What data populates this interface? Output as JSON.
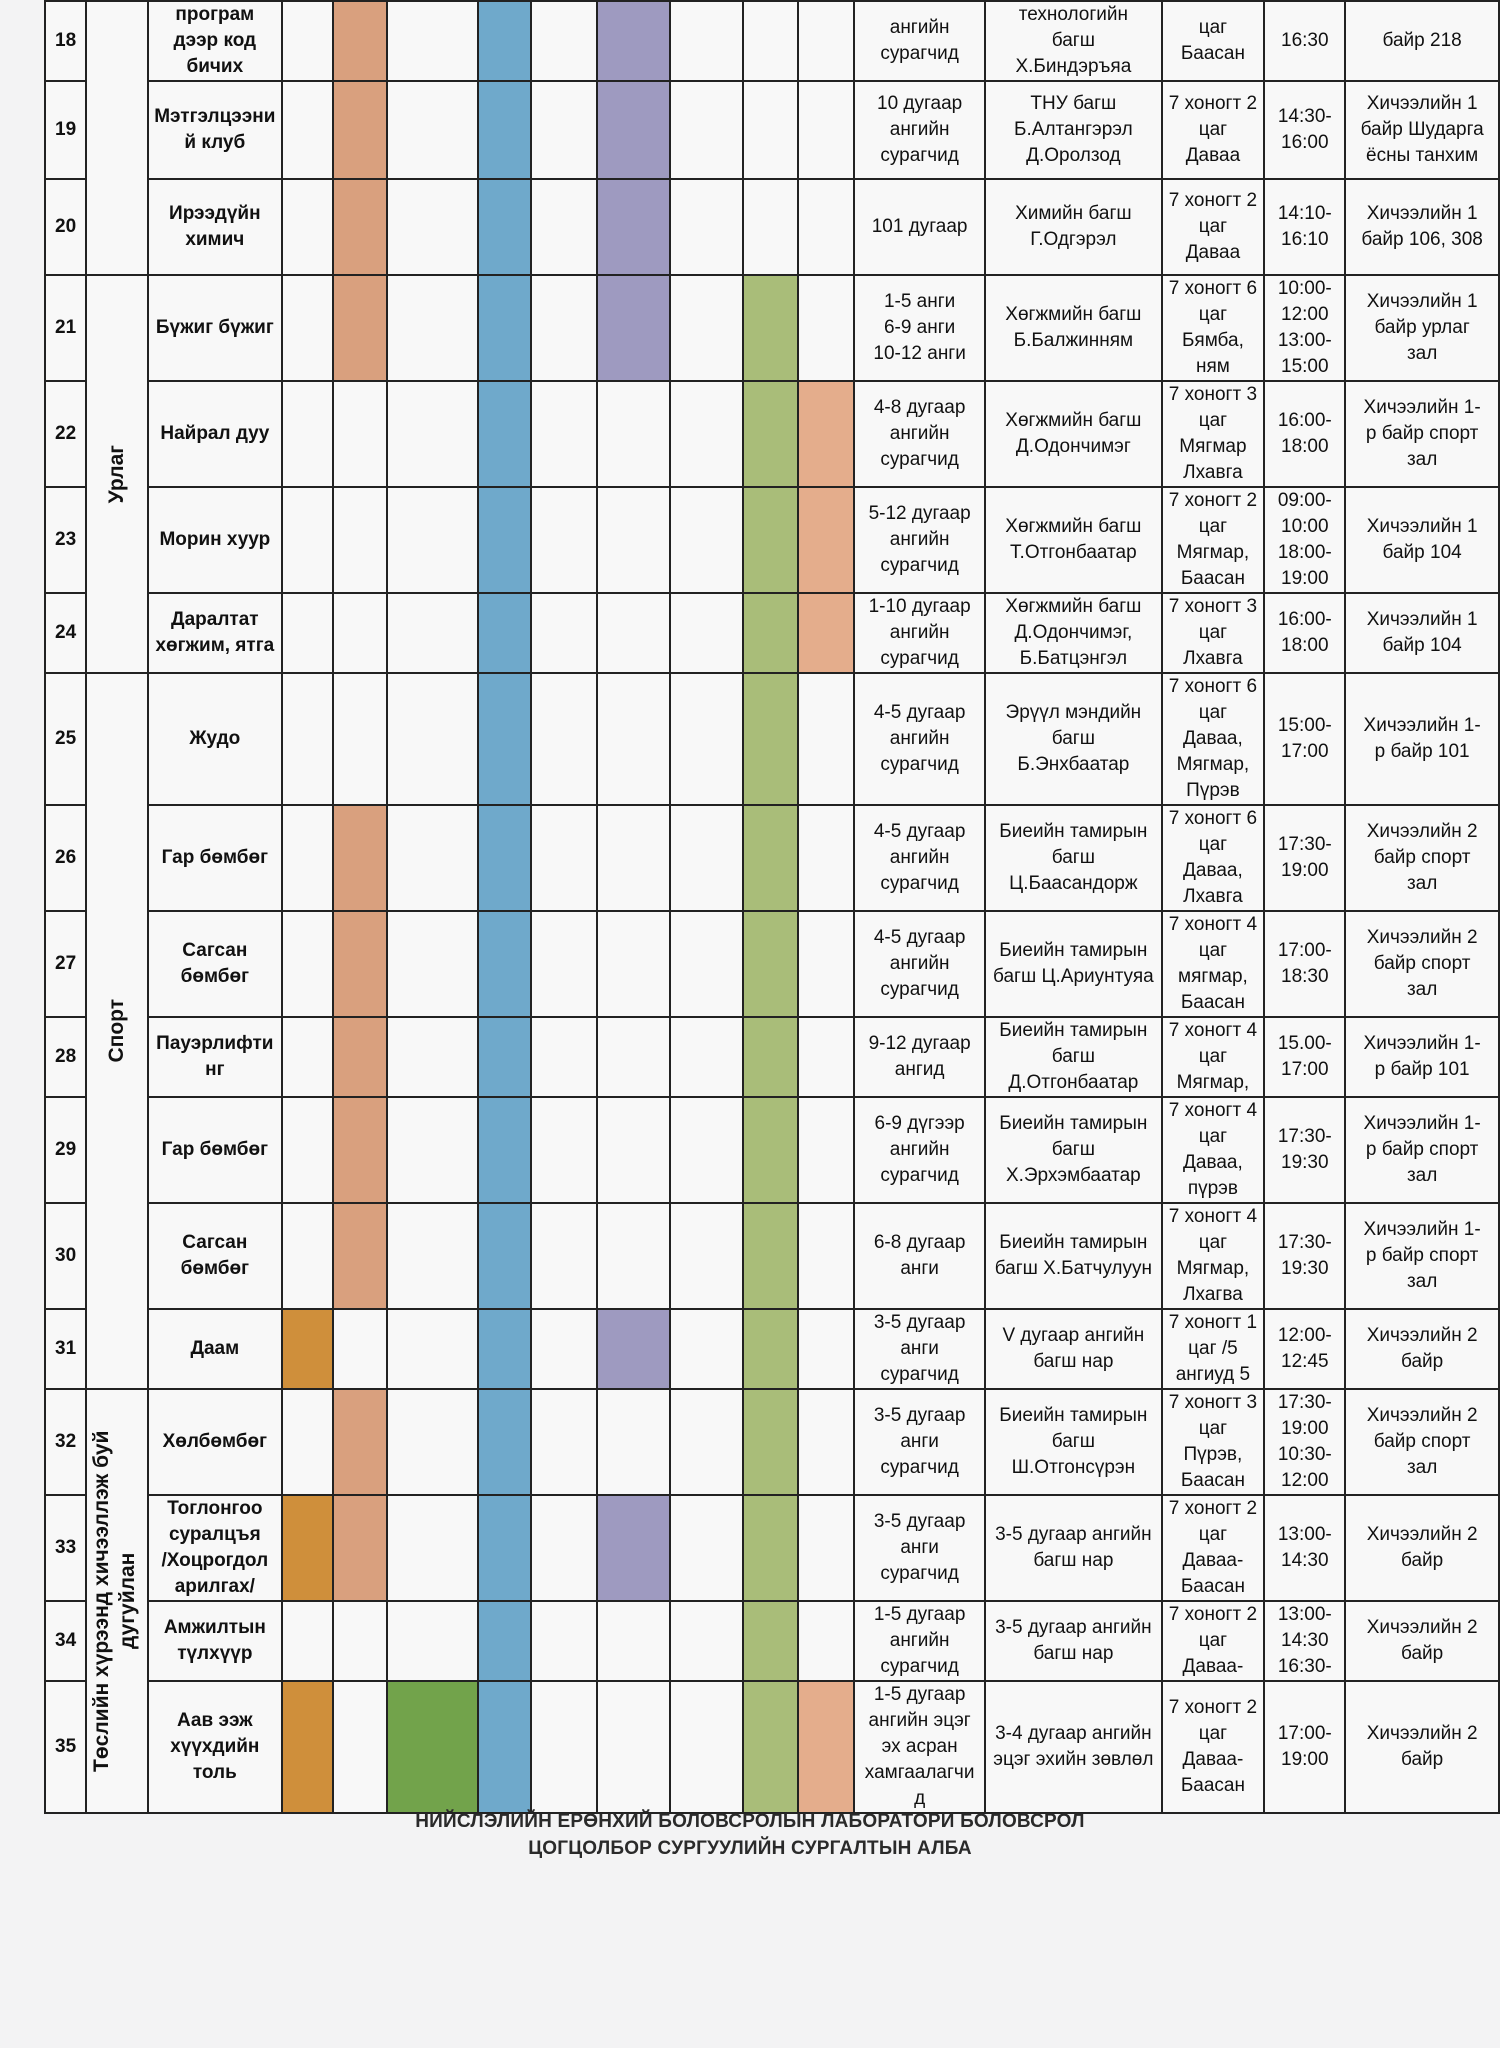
{
  "colors": {
    "orange_dark": "#cf8f3b",
    "salmon": "#d9a07e",
    "green_dark": "#72a34b",
    "blue": "#6fa9cb",
    "purple": "#9e9ac0",
    "green_light": "#a9bd79",
    "peach": "#e4ad8c",
    "cell_bg": "#f8f8f8"
  },
  "rows": [
    {
      "num": "18",
      "name": [
        "програм",
        "дээр код",
        "бичих"
      ],
      "marks": [
        "",
        "salmon",
        "",
        "blue",
        "",
        "purple",
        "",
        "",
        ""
      ],
      "students": [
        "ангийн",
        "сурагчид"
      ],
      "teacher": [
        "технологийн",
        "багш",
        "Х.Биндэръяа"
      ],
      "days": [
        "цаг",
        "Баасан"
      ],
      "time": [
        "16:30"
      ],
      "place": [
        "байр 218"
      ]
    },
    {
      "num": "19",
      "name": [
        "Мэтгэлцээни",
        "й клуб"
      ],
      "marks": [
        "",
        "salmon",
        "",
        "blue",
        "",
        "purple",
        "",
        "",
        ""
      ],
      "students": [
        "10 дугаар",
        "ангийн",
        "сурагчид"
      ],
      "teacher": [
        "ТНУ багш",
        "Б.Алтангэрэл",
        "Д.Оролзод"
      ],
      "days": [
        "7 хоногт 2",
        "цаг",
        "Даваа"
      ],
      "time": [
        "14:30-",
        "16:00"
      ],
      "place": [
        "Хичээлийн 1",
        "байр Шударга",
        "ёсны танхим"
      ]
    },
    {
      "num": "20",
      "name": [
        "Ирээдүйн",
        "химич"
      ],
      "marks": [
        "",
        "salmon",
        "",
        "blue",
        "",
        "purple",
        "",
        "",
        ""
      ],
      "students": [
        "101 дугаар"
      ],
      "teacher": [
        "Химийн багш",
        "Г.Одгэрэл"
      ],
      "days": [
        "7 хоногт 2",
        "цаг",
        "Даваа"
      ],
      "time": [
        "14:10-",
        "16:10"
      ],
      "place": [
        "Хичээлийн 1",
        "байр 106, 308"
      ]
    },
    {
      "num": "21",
      "name": [
        "Бүжиг бүжиг"
      ],
      "marks": [
        "",
        "salmon",
        "",
        "blue",
        "",
        "purple",
        "",
        "green_light",
        ""
      ],
      "students": [
        "1-5 анги",
        "6-9 анги",
        "10-12 анги"
      ],
      "teacher": [
        "Хөгжмийн багш",
        "Б.Балжинням"
      ],
      "days": [
        "7 хоногт 6",
        "цаг",
        "Бямба,",
        "ням"
      ],
      "time": [
        "10:00-",
        "12:00",
        "13:00-",
        "15:00"
      ],
      "place": [
        "Хичээлийн 1",
        "байр урлаг",
        "зал"
      ]
    },
    {
      "num": "22",
      "name": [
        "Найрал дуу"
      ],
      "marks": [
        "",
        "",
        "",
        "blue",
        "",
        "",
        "",
        "green_light",
        "peach"
      ],
      "students": [
        "4-8 дугаар",
        "ангийн",
        "сурагчид"
      ],
      "teacher": [
        "Хөгжмийн багш",
        "Д.Одончимэг"
      ],
      "days": [
        "7 хоногт 3",
        "цаг",
        "Мягмар",
        "Лхавга"
      ],
      "time": [
        "16:00-",
        "18:00"
      ],
      "place": [
        "Хичээлийн 1-",
        "р байр спорт",
        "зал"
      ]
    },
    {
      "num": "23",
      "name": [
        "Морин хуур"
      ],
      "marks": [
        "",
        "",
        "",
        "blue",
        "",
        "",
        "",
        "green_light",
        "peach"
      ],
      "students": [
        "5-12 дугаар",
        "ангийн",
        "сурагчид"
      ],
      "teacher": [
        "Хөгжмийн багш",
        "Т.Отгонбаатар"
      ],
      "days": [
        "7 хоногт 2",
        "цаг",
        "Мягмар,",
        "Баасан"
      ],
      "time": [
        "09:00-",
        "10:00",
        "18:00-",
        "19:00"
      ],
      "place": [
        "Хичээлийн 1",
        "байр 104"
      ]
    },
    {
      "num": "24",
      "name": [
        "Даралтат",
        "хөгжим, ятга"
      ],
      "marks": [
        "",
        "",
        "",
        "blue",
        "",
        "",
        "",
        "green_light",
        "peach"
      ],
      "students": [
        "1-10 дугаар",
        "ангийн",
        "сурагчид"
      ],
      "teacher": [
        "Хөгжмийн багш",
        "Д.Одончимэг,",
        "Б.Батцэнгэл"
      ],
      "days": [
        "7 хоногт 3",
        "цаг",
        "Лхавга"
      ],
      "time": [
        "16:00-",
        "18:00"
      ],
      "place": [
        "Хичээлийн 1",
        "байр  104"
      ]
    },
    {
      "num": "25",
      "name": [
        "Жудо"
      ],
      "marks": [
        "",
        "",
        "",
        "blue",
        "",
        "",
        "",
        "green_light",
        ""
      ],
      "students": [
        "4-5 дугаар",
        "ангийн",
        "сурагчид"
      ],
      "teacher": [
        "Эрүүл мэндийн",
        "багш",
        "Б.Энхбаатар"
      ],
      "days": [
        "7 хоногт 6",
        "цаг",
        "Даваа,",
        "Мягмар,",
        "Пүрэв"
      ],
      "time": [
        "15:00-",
        "17:00"
      ],
      "place": [
        "Хичээлийн 1-",
        "р байр 101"
      ]
    },
    {
      "num": "26",
      "name": [
        "Гар бөмбөг"
      ],
      "marks": [
        "",
        "salmon",
        "",
        "blue",
        "",
        "",
        "",
        "green_light",
        ""
      ],
      "students": [
        "4-5 дугаар",
        "ангийн",
        "сурагчид"
      ],
      "teacher": [
        "Биеийн тамирын",
        "багш",
        "Ц.Баасандорж"
      ],
      "days": [
        "7 хоногт 6",
        "цаг",
        "Даваа,",
        "Лхавга"
      ],
      "time": [
        "17:30-",
        "19:00"
      ],
      "place": [
        "Хичээлийн 2",
        "байр спорт",
        "зал"
      ]
    },
    {
      "num": "27",
      "name": [
        "Сагсан",
        "бөмбөг"
      ],
      "marks": [
        "",
        "salmon",
        "",
        "blue",
        "",
        "",
        "",
        "green_light",
        ""
      ],
      "students": [
        "4-5 дугаар",
        "ангийн",
        "сурагчид"
      ],
      "teacher": [
        "Биеийн тамирын",
        "багш Ц.Ариунтуяа"
      ],
      "days": [
        "7 хоногт 4",
        "цаг",
        "мягмар,",
        "Баасан"
      ],
      "time": [
        "17:00-",
        "18:30"
      ],
      "place": [
        "Хичээлийн 2",
        "байр спорт",
        "зал"
      ]
    },
    {
      "num": "28",
      "name": [
        "Пауэрлифти",
        "нг"
      ],
      "marks": [
        "",
        "salmon",
        "",
        "blue",
        "",
        "",
        "",
        "green_light",
        ""
      ],
      "students": [
        "9-12 дугаар",
        "ангид"
      ],
      "teacher": [
        "Биеийн тамирын",
        "багш",
        "Д.Отгонбаатар"
      ],
      "days": [
        "7 хоногт 4",
        "цаг",
        "Мягмар,"
      ],
      "time": [
        "15.00-",
        "17:00"
      ],
      "place": [
        "Хичээлийн 1-",
        "р байр 101"
      ]
    },
    {
      "num": "29",
      "name": [
        "Гар бөмбөг"
      ],
      "marks": [
        "",
        "salmon",
        "",
        "blue",
        "",
        "",
        "",
        "green_light",
        ""
      ],
      "students": [
        "6-9 дүгээр",
        "ангийн",
        "сурагчид"
      ],
      "teacher": [
        "Биеийн тамирын",
        "багш",
        "Х.Эрхэмбаатар"
      ],
      "days": [
        "7 хоногт 4",
        "цаг",
        "Даваа,",
        "пүрэв"
      ],
      "time": [
        "17:30-",
        "19:30"
      ],
      "place": [
        "Хичээлийн 1-",
        "р байр спорт",
        "зал"
      ]
    },
    {
      "num": "30",
      "name": [
        "Сагсан",
        "бөмбөг"
      ],
      "marks": [
        "",
        "salmon",
        "",
        "blue",
        "",
        "",
        "",
        "green_light",
        ""
      ],
      "students": [
        "6-8 дугаар",
        "анги"
      ],
      "teacher": [
        "Биеийн тамирын",
        "багш Х.Батчулуун"
      ],
      "days": [
        "7 хоногт 4",
        "цаг",
        "Мягмар,",
        "Лхагва"
      ],
      "time": [
        "17:30-",
        "19:30"
      ],
      "place": [
        "Хичээлийн 1-",
        "р байр спорт",
        "зал"
      ]
    },
    {
      "num": "31",
      "name": [
        "Даам"
      ],
      "marks": [
        "orange_dark",
        "",
        "",
        "blue",
        "",
        "purple",
        "",
        "green_light",
        ""
      ],
      "students": [
        "3-5 дугаар",
        "анги",
        "сурагчид"
      ],
      "teacher": [
        "V дугаар ангийн",
        "багш нар"
      ],
      "days": [
        "7 хоногт 1",
        "цаг /5",
        "ангиуд 5"
      ],
      "time": [
        "12:00-",
        "12:45"
      ],
      "place": [
        "Хичээлийн 2",
        "байр"
      ]
    },
    {
      "num": "32",
      "name": [
        "Хөлбөмбөг"
      ],
      "marks": [
        "",
        "salmon",
        "",
        "blue",
        "",
        "",
        "",
        "green_light",
        ""
      ],
      "students": [
        "3-5 дугаар",
        "анги",
        "сурагчид"
      ],
      "teacher": [
        "Биеийн тамирын",
        "багш",
        "Ш.Отгонсүрэн"
      ],
      "days": [
        "7 хоногт 3",
        "цаг",
        "Пүрэв,",
        "Баасан"
      ],
      "time": [
        "17:30-",
        "19:00",
        "10:30-",
        "12:00"
      ],
      "place": [
        "Хичээлийн 2",
        "байр спорт",
        "зал"
      ]
    },
    {
      "num": "33",
      "name": [
        "Тоглонгоо",
        "суралцъя",
        "/Хоцрогдол",
        "арилгах/"
      ],
      "marks": [
        "orange_dark",
        "salmon",
        "",
        "blue",
        "",
        "purple",
        "",
        "green_light",
        ""
      ],
      "students": [
        "3-5 дугаар",
        "анги",
        "сурагчид"
      ],
      "teacher": [
        "3-5 дугаар ангийн",
        "багш нар"
      ],
      "days": [
        "7 хоногт 2",
        "цаг",
        "Даваа-",
        "Баасан"
      ],
      "time": [
        "13:00-",
        "14:30"
      ],
      "place": [
        "Хичээлийн 2",
        "байр"
      ]
    },
    {
      "num": "34",
      "name": [
        "Амжилтын",
        "түлхүүр"
      ],
      "marks": [
        "",
        "",
        "",
        "blue",
        "",
        "",
        "",
        "green_light",
        ""
      ],
      "students": [
        "1-5 дугаар",
        "ангийн",
        "сурагчид"
      ],
      "teacher": [
        "3-5 дугаар ангийн",
        "багш нар"
      ],
      "days": [
        "7 хоногт 2",
        "цаг",
        "Даваа-"
      ],
      "time": [
        "13:00-",
        "14:30",
        "16:30-"
      ],
      "place": [
        "Хичээлийн 2",
        "байр"
      ]
    },
    {
      "num": "35",
      "name": [
        "Аав ээж",
        "хүүхдийн",
        "толь"
      ],
      "marks": [
        "orange_dark",
        "",
        "green_dark",
        "blue",
        "",
        "",
        "",
        "green_light",
        "peach"
      ],
      "students": [
        "1-5 дугаар",
        "ангийн эцэг",
        "эх асран",
        "хамгаалагчи",
        "д"
      ],
      "teacher": [
        "3-4 дугаар ангийн",
        "эцэг эхийн зөвлөл"
      ],
      "days": [
        "7 хоногт 2",
        "цаг",
        "Даваа-",
        "Баасан"
      ],
      "time": [
        "17:00-",
        "19:00"
      ],
      "place": [
        "Хичээлийн 2",
        "байр"
      ]
    }
  ],
  "categories": {
    "art": "Урлаг",
    "sport": "Спорт",
    "club": [
      "Төслийн хүрээнд хичээллэж буй",
      "дугуйлан"
    ]
  },
  "footer": {
    "line1": "НИЙСЛЭЛИЙН ЕРӨНХИЙ БОЛОВСРОЛЫН ЛАБОРАТОРИ БОЛОВСРОЛ",
    "line2": "ЦОГЦОЛБОР СУРГУУЛИЙН СУРГАЛТЫН АЛБА"
  }
}
